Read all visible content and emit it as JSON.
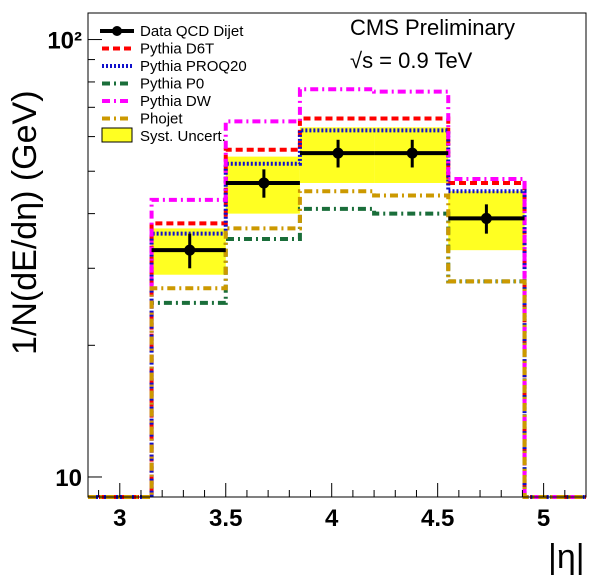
{
  "chart_data": {
    "type": "line",
    "title": "",
    "xlabel": "|η|",
    "ylabel": "1/N(dE/dη) (GeV)",
    "xlim": [
      2.85,
      5.2
    ],
    "ylim": [
      9,
      115
    ],
    "yscale": "log",
    "grid": false,
    "legend_position": "top-left",
    "x_ticks": [
      "3",
      "3.5",
      "4",
      "4.5",
      "5"
    ],
    "y_ticks": [
      "10",
      "10²"
    ],
    "annotations": [
      "CMS Preliminary",
      "√s = 0.9 TeV"
    ],
    "bin_edges": [
      2.85,
      3.15,
      3.5,
      3.85,
      4.2,
      4.55,
      4.91,
      5.2
    ],
    "series": [
      {
        "name": "Data QCD Dijet",
        "color": "#000000",
        "style": "data",
        "x": [
          3.33,
          3.68,
          4.03,
          4.38,
          4.73
        ],
        "values": [
          33,
          47,
          55,
          55,
          39
        ],
        "errors": [
          3,
          3.5,
          4,
          4,
          3
        ]
      },
      {
        "name": "Pythia D6T",
        "color": "#ff0000",
        "style": "dashed",
        "values": [
          9,
          38,
          56,
          66,
          66,
          47,
          9
        ]
      },
      {
        "name": "Pythia PROQ20",
        "color": "#1010cc",
        "style": "dotted",
        "values": [
          9,
          36,
          52,
          62,
          62,
          45,
          9
        ]
      },
      {
        "name": "Pythia P0",
        "color": "#1a6e3a",
        "style": "dashdot",
        "values": [
          9,
          25,
          35,
          41,
          40,
          28,
          9
        ]
      },
      {
        "name": "Pythia DW",
        "color": "#ff00ff",
        "style": "dashdot",
        "values": [
          9,
          43,
          65,
          77,
          76,
          48,
          9
        ]
      },
      {
        "name": "Phojet",
        "color": "#cc9900",
        "style": "dashdot",
        "values": [
          9,
          27,
          37,
          45,
          44,
          28,
          9
        ]
      }
    ],
    "band": {
      "name": "Syst. Uncert.",
      "color": "#ffff22",
      "low": [
        29,
        40,
        47,
        47,
        33
      ],
      "high": [
        37,
        54,
        63,
        63,
        45
      ]
    }
  }
}
